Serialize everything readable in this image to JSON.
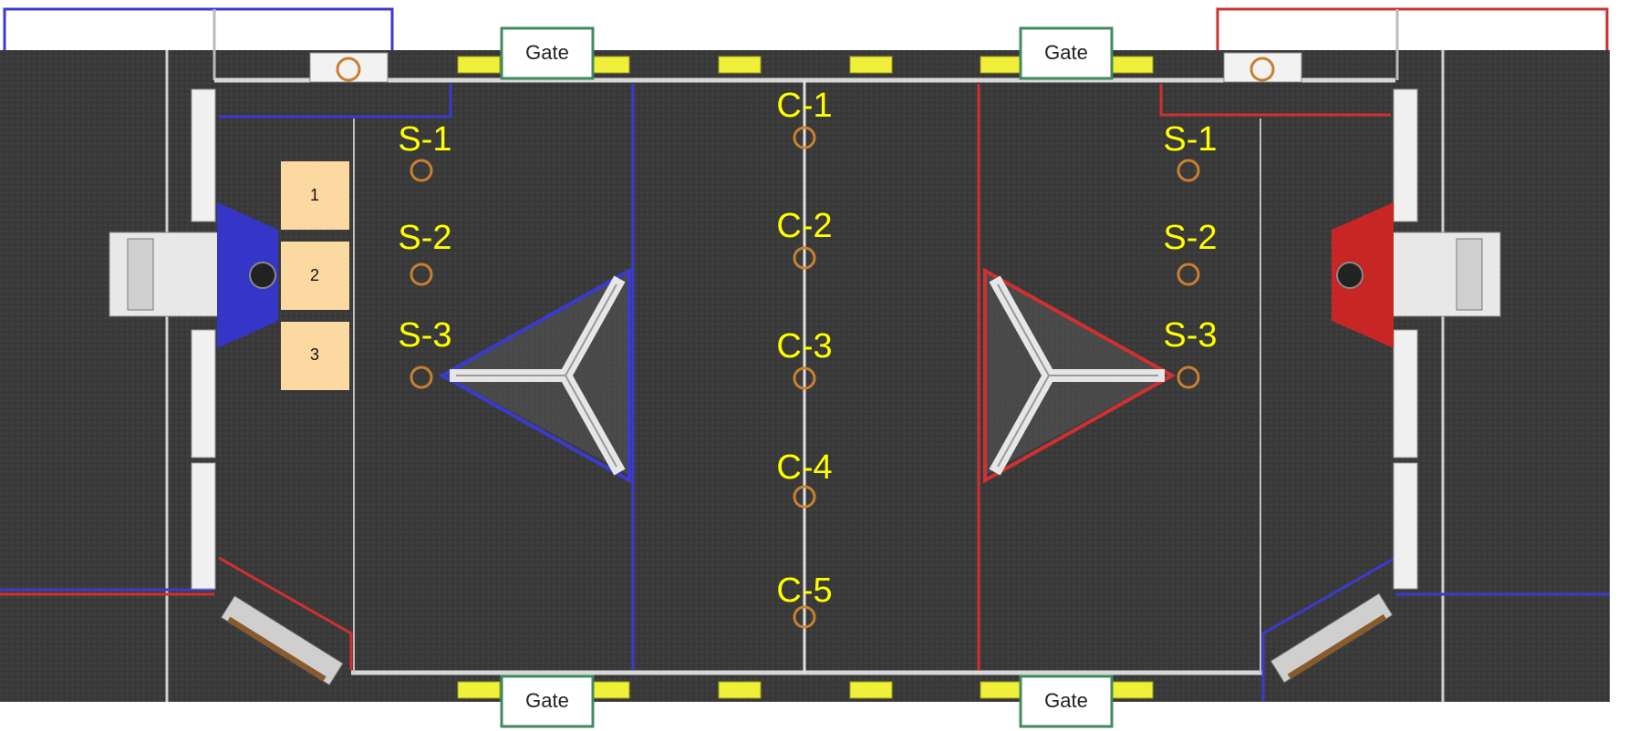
{
  "colors": {
    "background": "#ffffff",
    "carpet": "#3b3b3b",
    "carpet_dark": "#2a2a2a",
    "wall": "#d8d8d8",
    "blue_alliance": "#3a3ad0",
    "red_alliance": "#d03030",
    "gate_border": "#3f8a5f",
    "gate_yellow": "#f0ef3a",
    "spot_ring": "#c88030",
    "label_yellow": "#ffff00",
    "start_box": "#fcd9a0"
  },
  "gates": [
    {
      "id": "gate-top-left",
      "label": "Gate"
    },
    {
      "id": "gate-top-right",
      "label": "Gate"
    },
    {
      "id": "gate-bottom-left",
      "label": "Gate"
    },
    {
      "id": "gate-bottom-right",
      "label": "Gate"
    }
  ],
  "center_spots": [
    {
      "label": "C-1"
    },
    {
      "label": "C-2"
    },
    {
      "label": "C-3"
    },
    {
      "label": "C-4"
    },
    {
      "label": "C-5"
    }
  ],
  "left_spots": [
    {
      "label": "S-1"
    },
    {
      "label": "S-2"
    },
    {
      "label": "S-3"
    }
  ],
  "right_spots": [
    {
      "label": "S-1"
    },
    {
      "label": "S-2"
    },
    {
      "label": "S-3"
    }
  ],
  "start_positions": [
    {
      "label": "1"
    },
    {
      "label": "2"
    },
    {
      "label": "3"
    }
  ]
}
